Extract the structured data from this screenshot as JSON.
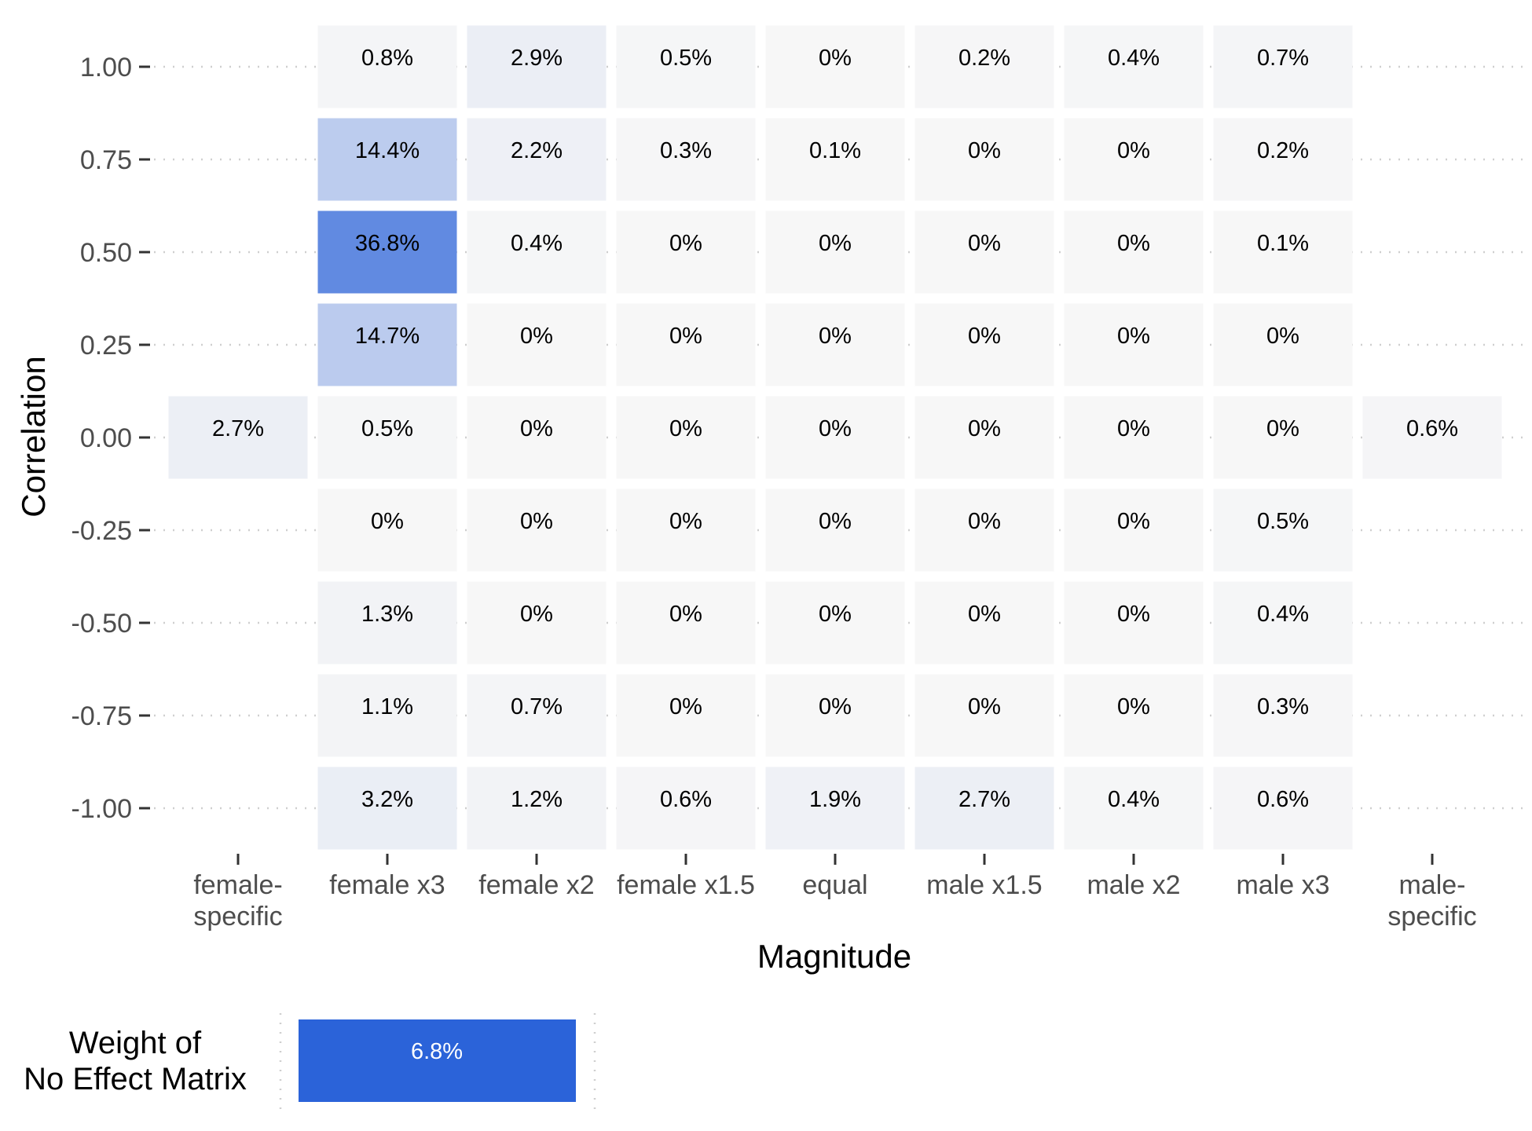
{
  "chart_data": {
    "type": "heatmap",
    "xlabel": "Magnitude",
    "ylabel": "Correlation",
    "x_categories": [
      [
        "female-",
        "specific"
      ],
      [
        "female x3"
      ],
      [
        "female x2"
      ],
      [
        "female x1.5"
      ],
      [
        "equal"
      ],
      [
        "male x1.5"
      ],
      [
        "male x2"
      ],
      [
        "male x3"
      ],
      [
        "male-",
        "specific"
      ]
    ],
    "y_categories": [
      "1.00",
      "0.75",
      "0.50",
      "0.25",
      "0.00",
      "-0.25",
      "-0.50",
      "-0.75",
      "-1.00"
    ],
    "cells": [
      [
        null,
        "0.8%",
        "2.9%",
        "0.5%",
        "0%",
        "0.2%",
        "0.4%",
        "0.7%",
        null
      ],
      [
        null,
        "14.4%",
        "2.2%",
        "0.3%",
        "0.1%",
        "0%",
        "0%",
        "0.2%",
        null
      ],
      [
        null,
        "36.8%",
        "0.4%",
        "0%",
        "0%",
        "0%",
        "0%",
        "0.1%",
        null
      ],
      [
        null,
        "14.7%",
        "0%",
        "0%",
        "0%",
        "0%",
        "0%",
        "0%",
        null
      ],
      [
        "2.7%",
        "0.5%",
        "0%",
        "0%",
        "0%",
        "0%",
        "0%",
        "0%",
        "0.6%"
      ],
      [
        null,
        "0%",
        "0%",
        "0%",
        "0%",
        "0%",
        "0%",
        "0.5%",
        null
      ],
      [
        null,
        "1.3%",
        "0%",
        "0%",
        "0%",
        "0%",
        "0%",
        "0.4%",
        null
      ],
      [
        null,
        "1.1%",
        "0.7%",
        "0%",
        "0%",
        "0%",
        "0%",
        "0.3%",
        null
      ],
      [
        null,
        "3.2%",
        "1.2%",
        "0.6%",
        "1.9%",
        "2.7%",
        "0.4%",
        "0.6%",
        null
      ]
    ],
    "color_low": "#f7f7f7",
    "color_high": "#2b63d9",
    "color_max_value": 50,
    "no_effect": {
      "title": [
        "Weight of",
        "No Effect Matrix"
      ],
      "label": "6.8%",
      "value": 6.8,
      "color": "#2b63d9"
    }
  }
}
